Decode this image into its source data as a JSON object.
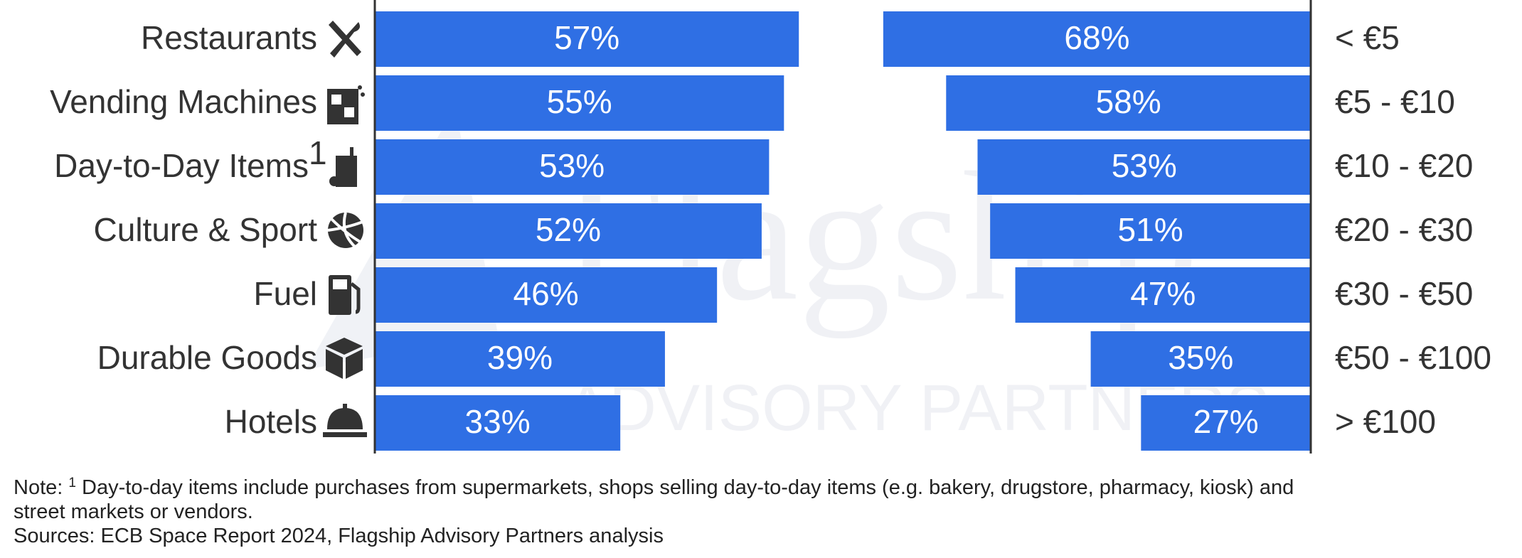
{
  "chart_data": [
    {
      "type": "bar",
      "orientation": "horizontal",
      "categories": [
        "Restaurants",
        "Vending Machines",
        "Day-to-Day Items",
        "Culture & Sport",
        "Fuel",
        "Durable Goods",
        "Hotels"
      ],
      "category_superscripts": [
        null,
        null,
        "1",
        null,
        null,
        null,
        null
      ],
      "values": [
        57,
        55,
        53,
        52,
        46,
        39,
        33
      ],
      "value_labels": [
        "57%",
        "55%",
        "53%",
        "52%",
        "46%",
        "39%",
        "33%"
      ],
      "color": "#2f6fe4",
      "xlim": [
        0,
        100
      ]
    },
    {
      "type": "bar",
      "orientation": "horizontal",
      "categories": [
        "< €5",
        "€5 - €10",
        "€10 - €20",
        "€20 - €30",
        "€30 - €50",
        "€50 - €100",
        "> €100"
      ],
      "values": [
        68,
        58,
        53,
        51,
        47,
        35,
        27
      ],
      "value_labels": [
        "68%",
        "58%",
        "53%",
        "51%",
        "47%",
        "35%",
        "27%"
      ],
      "color": "#2f6fe4",
      "xlim": [
        0,
        100
      ]
    }
  ],
  "watermark": {
    "name": "Flagship",
    "tagline": "ADVISORY PARTNERS"
  },
  "footnote": {
    "prefix": "Note:",
    "marker": "1",
    "lines": [
      "Day-to-day items include purchases from supermarkets, shops selling day-to-day items (e.g. bakery, drugstore, pharmacy, kiosk) and",
      "street markets or vendors."
    ],
    "sources": "Sources: ECB Space Report 2024, Flagship Advisory Partners analysis"
  }
}
